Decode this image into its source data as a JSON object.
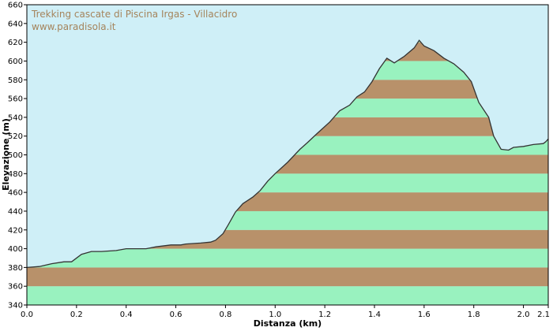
{
  "chart_data": {
    "type": "area",
    "title": "Trekking cascate di Piscina Irgas - Villacidro",
    "subtitle": "www.paradisola.it",
    "xlabel": "Distanza (km)",
    "ylabel": "Elevazione (m)",
    "xlim": [
      0,
      2.1
    ],
    "ylim": [
      340,
      660
    ],
    "x_ticks": [
      "0.0",
      "0.2",
      "0.4",
      "0.6",
      "0.8",
      "1.0",
      "1.2",
      "1.4",
      "1.6",
      "1.8",
      "2.0",
      "2.1"
    ],
    "y_ticks": [
      "340",
      "360",
      "380",
      "400",
      "420",
      "440",
      "460",
      "480",
      "500",
      "520",
      "540",
      "560",
      "580",
      "600",
      "620",
      "640",
      "660"
    ],
    "x": [
      0.0,
      0.05,
      0.1,
      0.15,
      0.18,
      0.22,
      0.26,
      0.3,
      0.36,
      0.4,
      0.48,
      0.52,
      0.58,
      0.62,
      0.64,
      0.7,
      0.74,
      0.76,
      0.79,
      0.81,
      0.84,
      0.87,
      0.91,
      0.94,
      0.97,
      1.0,
      1.05,
      1.1,
      1.13,
      1.17,
      1.22,
      1.26,
      1.3,
      1.33,
      1.36,
      1.39,
      1.42,
      1.45,
      1.48,
      1.52,
      1.56,
      1.58,
      1.6,
      1.64,
      1.68,
      1.72,
      1.76,
      1.79,
      1.82,
      1.86,
      1.88,
      1.91,
      1.94,
      1.96,
      2.0,
      2.04,
      2.08,
      2.09,
      2.1
    ],
    "y": [
      380,
      381,
      384,
      386,
      386,
      394,
      397,
      397,
      398,
      400,
      400,
      402,
      404,
      404,
      405,
      406,
      407,
      409,
      416,
      425,
      439,
      448,
      455,
      462,
      472,
      480,
      492,
      506,
      513,
      523,
      535,
      547,
      553,
      562,
      567,
      578,
      592,
      603,
      598,
      605,
      614,
      622,
      616,
      611,
      603,
      597,
      588,
      578,
      556,
      540,
      520,
      506,
      505,
      508,
      509,
      511,
      512,
      514,
      517
    ],
    "band_colors": [
      "#99f2bf",
      "#b8916a"
    ],
    "plot_background": "#cfeff7",
    "line_color": "#333333",
    "title_color": "#a5845c",
    "grid": false
  }
}
